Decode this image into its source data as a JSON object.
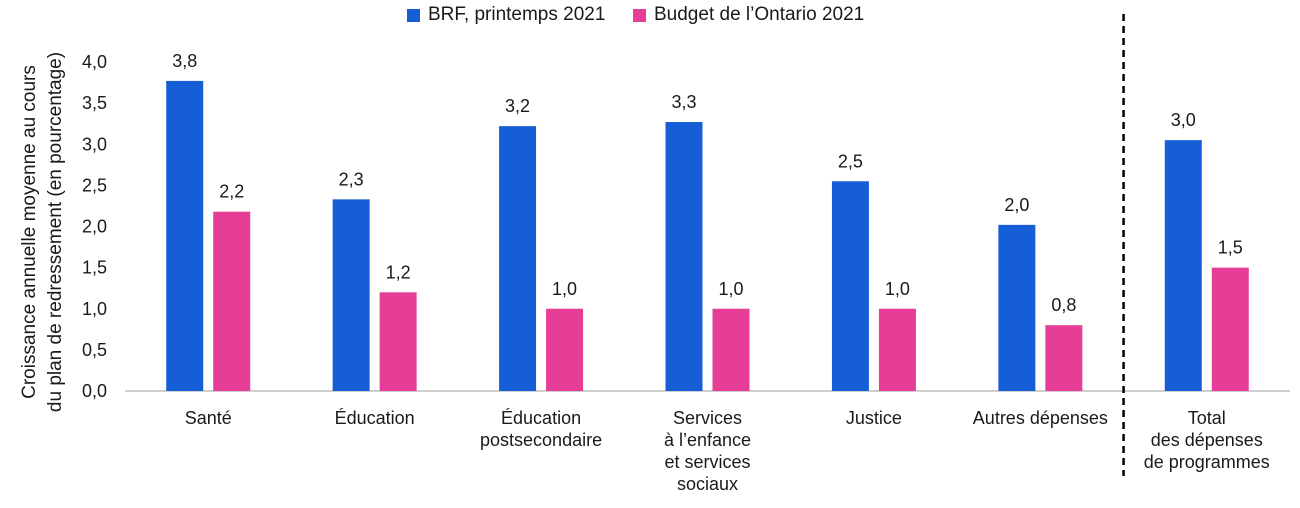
{
  "chart_data": {
    "type": "bar",
    "title": "",
    "ylabel": [
      "Croissance annuelle moyenne au cours",
      "du plan de redressement (en pourcentage)"
    ],
    "xlabel": "",
    "ylim": [
      0,
      4.0
    ],
    "yticks": [
      "0,0",
      "0,5",
      "1,0",
      "1,5",
      "2,0",
      "2,5",
      "3,0",
      "3,5",
      "4,0"
    ],
    "ytick_values": [
      0,
      0.5,
      1.0,
      1.5,
      2.0,
      2.5,
      3.0,
      3.5,
      4.0
    ],
    "grid": false,
    "legend_position": "top",
    "categories": [
      [
        "Santé"
      ],
      [
        "Éducation"
      ],
      [
        "Éducation",
        "postsecondaire"
      ],
      [
        "Services",
        "à l’enfance",
        "et services",
        "sociaux"
      ],
      [
        "Justice"
      ],
      [
        "Autres dépenses"
      ],
      [
        "Total",
        "des dépenses",
        "de programmes"
      ]
    ],
    "separator_after_category_index": 5,
    "series": [
      {
        "name": "BRF, printemps 2021",
        "color": "#155ed6",
        "values": [
          3.77,
          2.33,
          3.22,
          3.27,
          2.55,
          2.02,
          3.05
        ],
        "labels": [
          "3,8",
          "2,3",
          "3,2",
          "3,3",
          "2,5",
          "2,0",
          "3,0"
        ]
      },
      {
        "name": "Budget de l’Ontario 2021",
        "color": "#e63e96",
        "values": [
          2.18,
          1.2,
          1.0,
          1.0,
          1.0,
          0.8,
          1.5
        ],
        "labels": [
          "2,2",
          "1,2",
          "1,0",
          "1,0",
          "1,0",
          "0,8",
          "1,5"
        ]
      }
    ]
  }
}
